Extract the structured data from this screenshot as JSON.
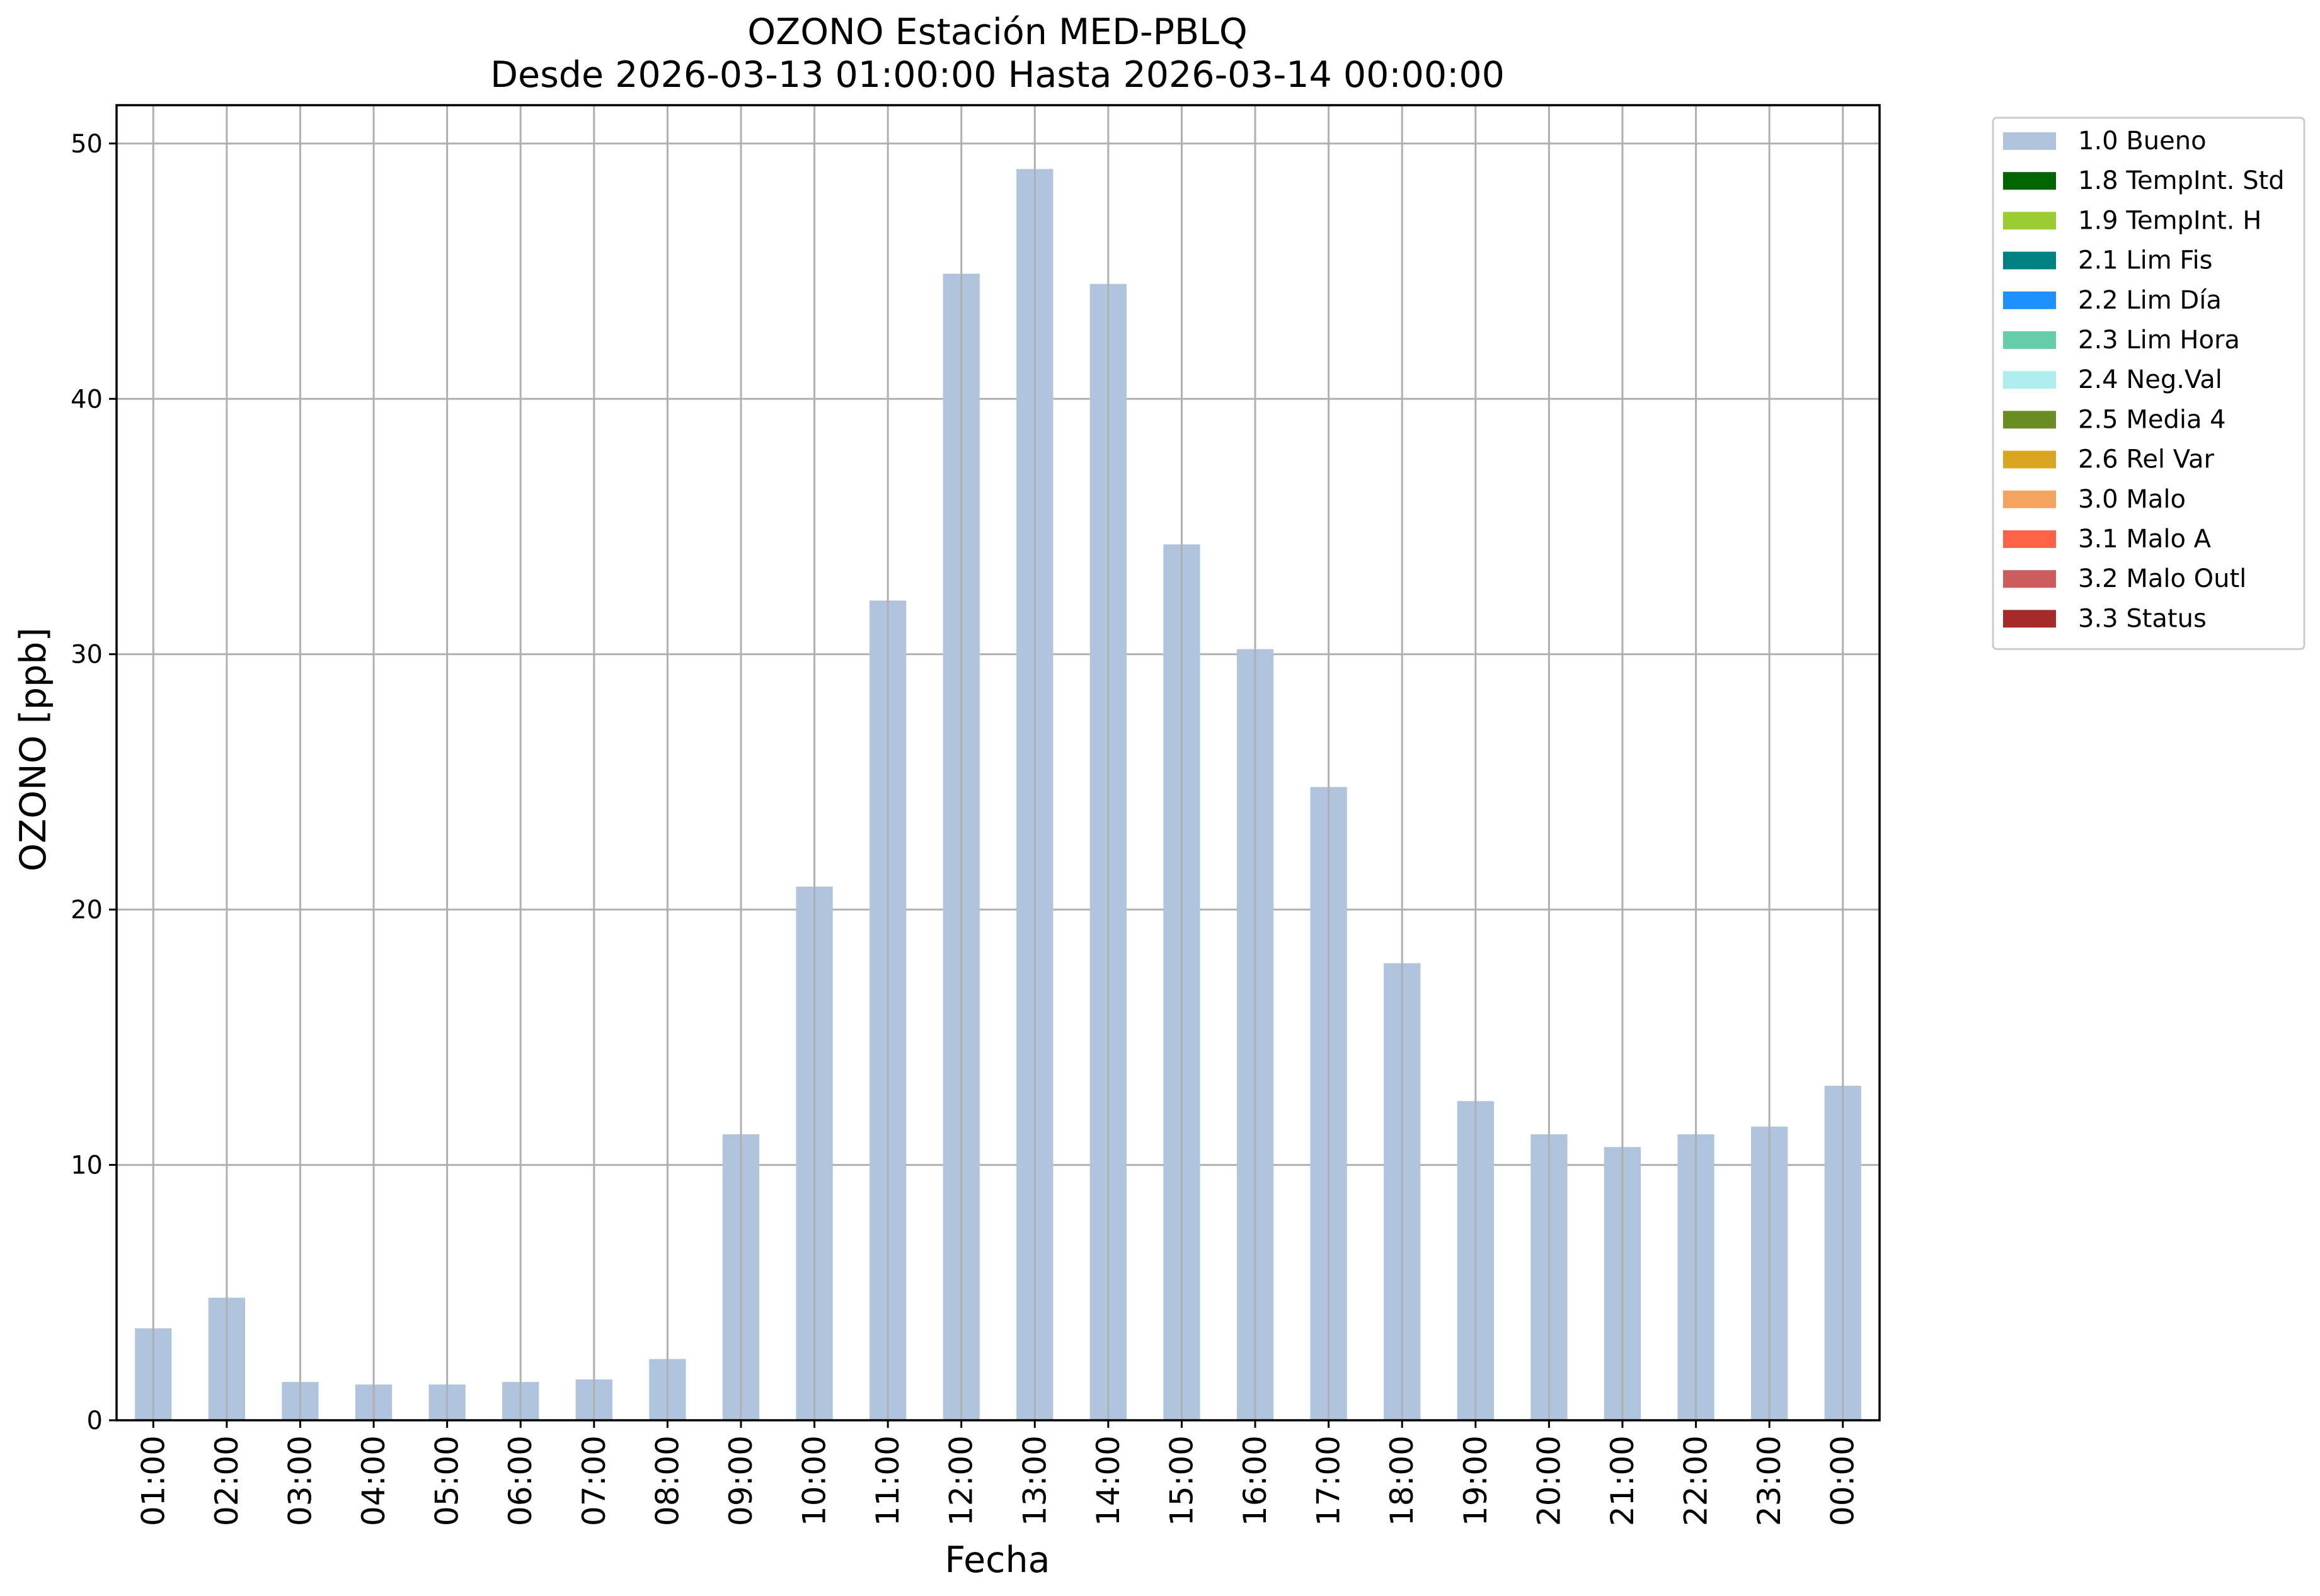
{
  "chart_data": {
    "type": "bar",
    "title": "OZONO Estación MED-PBLQ",
    "subtitle": "Desde 2026-03-13 01:00:00 Hasta 2026-03-14 00:00:00",
    "xlabel": "Fecha",
    "ylabel": "OZONO [ppb]",
    "ylim": [
      0,
      51.5
    ],
    "yticks": [
      0,
      10,
      20,
      30,
      40,
      50
    ],
    "grid": true,
    "legend_position": "outside-right-top",
    "categories": [
      "01:00",
      "02:00",
      "03:00",
      "04:00",
      "05:00",
      "06:00",
      "07:00",
      "08:00",
      "09:00",
      "10:00",
      "11:00",
      "12:00",
      "13:00",
      "14:00",
      "15:00",
      "16:00",
      "17:00",
      "18:00",
      "19:00",
      "20:00",
      "21:00",
      "22:00",
      "23:00",
      "00:00"
    ],
    "series": [
      {
        "name": "1.0 Bueno",
        "color": "#b0c4de",
        "values": [
          3.6,
          4.8,
          1.5,
          1.4,
          1.4,
          1.5,
          1.6,
          2.4,
          11.2,
          20.9,
          32.1,
          44.9,
          49.0,
          44.5,
          34.3,
          30.2,
          24.8,
          17.9,
          12.5,
          11.2,
          10.7,
          11.2,
          11.5,
          13.1
        ]
      }
    ],
    "legend": [
      {
        "label": "1.0 Bueno",
        "color": "#b0c4de"
      },
      {
        "label": "1.8 TempInt. Std",
        "color": "#006400"
      },
      {
        "label": "1.9 TempInt. H",
        "color": "#9acd32"
      },
      {
        "label": "2.1 Lim Fis",
        "color": "#008080"
      },
      {
        "label": "2.2 Lim Día",
        "color": "#1e90ff"
      },
      {
        "label": "2.3 Lim Hora",
        "color": "#66cdaa"
      },
      {
        "label": "2.4 Neg.Val",
        "color": "#afeeee"
      },
      {
        "label": "2.5 Media 4",
        "color": "#6b8e23"
      },
      {
        "label": "2.6 Rel Var",
        "color": "#daa520"
      },
      {
        "label": "3.0 Malo",
        "color": "#f4a460"
      },
      {
        "label": "3.1 Malo A",
        "color": "#ff6347"
      },
      {
        "label": "3.2 Malo Outl",
        "color": "#cd5c5c"
      },
      {
        "label": "3.3 Status",
        "color": "#a52a2a"
      }
    ]
  }
}
